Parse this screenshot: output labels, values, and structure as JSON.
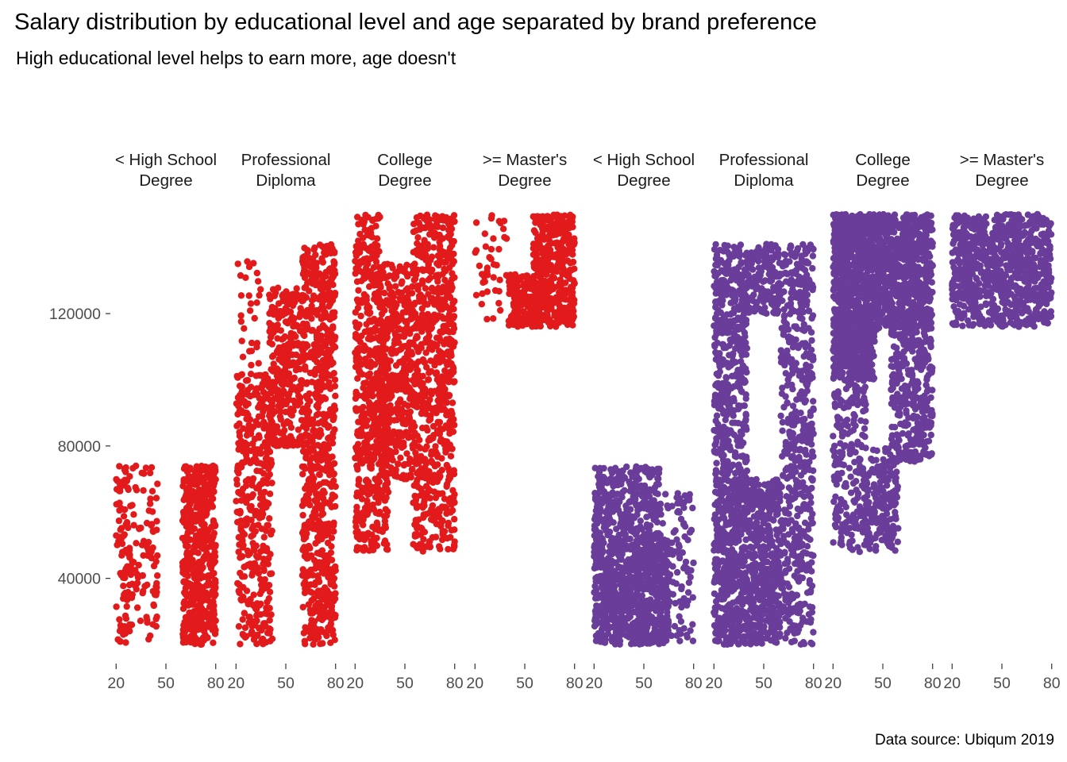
{
  "chart_data": {
    "type": "scatter",
    "title": "Salary distribution by educational level and age separated by brand preference",
    "subtitle": "High educational level helps to earn more, age doesn't",
    "caption": "Data source: Ubiqum 2019",
    "xlabel": "",
    "ylabel": "",
    "x_ticks": [
      20,
      50,
      80
    ],
    "x_range": [
      17,
      83
    ],
    "y_ticks": [
      40000,
      80000,
      120000
    ],
    "y_range": [
      20000,
      150000
    ],
    "grid": false,
    "legend": "none",
    "point_style": "jittered dense scatter",
    "colors": {
      "first_group": "#e31a1c",
      "second_group": "#6a3d9a"
    },
    "panels": [
      {
        "label_line1": "< High School",
        "label_line2": "Degree",
        "color": "#e31a1c",
        "age_range": [
          20,
          80
        ],
        "regions": [
          {
            "x": [
              20,
              30
            ],
            "y": [
              20000,
              74000
            ],
            "weight": 0.45
          },
          {
            "x": [
              60,
              80
            ],
            "y": [
              20000,
              74000
            ],
            "weight": 2.2
          },
          {
            "x": [
              30,
              45
            ],
            "y": [
              20000,
              74000
            ],
            "weight": 0.35
          }
        ]
      },
      {
        "label_line1": "Professional",
        "label_line2": "Diploma",
        "color": "#e31a1c",
        "age_range": [
          20,
          80
        ],
        "regions": [
          {
            "x": [
              20,
              42
            ],
            "y": [
              20000,
              102000
            ],
            "weight": 1.8
          },
          {
            "x": [
              20,
              35
            ],
            "y": [
              102000,
              138000
            ],
            "weight": 0.12
          },
          {
            "x": [
              40,
              60
            ],
            "y": [
              80000,
              128000
            ],
            "weight": 1.3
          },
          {
            "x": [
              60,
              80
            ],
            "y": [
              20000,
              141000
            ],
            "weight": 3.2
          }
        ]
      },
      {
        "label_line1": "College",
        "label_line2": "Degree",
        "color": "#e31a1c",
        "age_range": [
          20,
          80
        ],
        "regions": [
          {
            "x": [
              20,
              40
            ],
            "y": [
              48000,
              118000
            ],
            "weight": 1.8
          },
          {
            "x": [
              20,
              35
            ],
            "y": [
              118000,
              150000
            ],
            "weight": 0.5
          },
          {
            "x": [
              35,
              55
            ],
            "y": [
              70000,
              135000
            ],
            "weight": 1.7
          },
          {
            "x": [
              55,
              80
            ],
            "y": [
              48000,
              150000
            ],
            "weight": 3.0
          }
        ]
      },
      {
        "label_line1": ">= Master's",
        "label_line2": "Degree",
        "color": "#e31a1c",
        "age_range": [
          20,
          80
        ],
        "regions": [
          {
            "x": [
              20,
              40
            ],
            "y": [
              118000,
              150000
            ],
            "weight": 0.18
          },
          {
            "x": [
              40,
              60
            ],
            "y": [
              116000,
              132000
            ],
            "weight": 0.9
          },
          {
            "x": [
              55,
              80
            ],
            "y": [
              116000,
              150000
            ],
            "weight": 1.6
          }
        ]
      },
      {
        "label_line1": "< High School",
        "label_line2": "Degree",
        "color": "#6a3d9a",
        "age_range": [
          20,
          80
        ],
        "regions": [
          {
            "x": [
              20,
              65
            ],
            "y": [
              20000,
              52000
            ],
            "weight": 3.5
          },
          {
            "x": [
              20,
              60
            ],
            "y": [
              52000,
              74000
            ],
            "weight": 1.3
          },
          {
            "x": [
              60,
              80
            ],
            "y": [
              20000,
              66000
            ],
            "weight": 0.5
          }
        ]
      },
      {
        "label_line1": "Professional",
        "label_line2": "Diploma",
        "color": "#6a3d9a",
        "age_range": [
          20,
          80
        ],
        "regions": [
          {
            "x": [
              20,
              60
            ],
            "y": [
              20000,
              70000
            ],
            "weight": 4.2
          },
          {
            "x": [
              20,
              40
            ],
            "y": [
              70000,
              141000
            ],
            "weight": 2.0
          },
          {
            "x": [
              40,
              60
            ],
            "y": [
              120000,
              141000
            ],
            "weight": 0.7
          },
          {
            "x": [
              60,
              80
            ],
            "y": [
              20000,
              141000
            ],
            "weight": 2.4
          }
        ]
      },
      {
        "label_line1": "College",
        "label_line2": "Degree",
        "color": "#6a3d9a",
        "age_range": [
          20,
          80
        ],
        "regions": [
          {
            "x": [
              20,
              45
            ],
            "y": [
              100000,
              150000
            ],
            "weight": 4.0
          },
          {
            "x": [
              20,
              40
            ],
            "y": [
              48000,
              100000
            ],
            "weight": 0.9
          },
          {
            "x": [
              45,
              80
            ],
            "y": [
              115000,
              150000
            ],
            "weight": 3.2
          },
          {
            "x": [
              55,
              80
            ],
            "y": [
              75000,
              115000
            ],
            "weight": 1.4
          },
          {
            "x": [
              40,
              60
            ],
            "y": [
              48000,
              80000
            ],
            "weight": 0.8
          }
        ]
      },
      {
        "label_line1": ">= Master's",
        "label_line2": "Degree",
        "color": "#6a3d9a",
        "age_range": [
          20,
          80
        ],
        "regions": [
          {
            "x": [
              20,
              80
            ],
            "y": [
              125000,
              150000
            ],
            "weight": 3.0
          },
          {
            "x": [
              20,
              80
            ],
            "y": [
              116000,
              125000
            ],
            "weight": 0.8
          }
        ]
      }
    ]
  }
}
